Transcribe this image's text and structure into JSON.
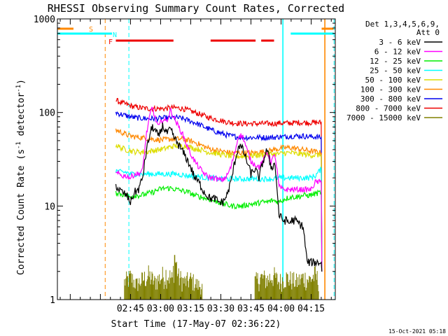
{
  "chart_data": {
    "type": "line",
    "title": "RHESSI Observing Summary Count Rates, Corrected",
    "xlabel": "Start Time (17-May-07 02:36:22)",
    "ylabel_main": "Corrected Count Rate (s",
    "ylabel_sup1": "-1",
    "ylabel_mid": " detector",
    "ylabel_sup2": "-1",
    "ylabel_end": ")",
    "y_scale": "log",
    "ylim": [
      1,
      1000
    ],
    "y_ticks": [
      {
        "value": 1,
        "label": "1"
      },
      {
        "value": 10,
        "label": "10"
      },
      {
        "value": 100,
        "label": "100"
      },
      {
        "value": 1000,
        "label": "1000"
      }
    ],
    "xlim_minutes": [
      -36.4,
      102.0
    ],
    "x_ticks": [
      {
        "minutes": 0,
        "label": "02:45"
      },
      {
        "minutes": 15,
        "label": "03:00"
      },
      {
        "minutes": 30,
        "label": "03:15"
      },
      {
        "minutes": 45,
        "label": "03:30"
      },
      {
        "minutes": 60,
        "label": "03:45"
      },
      {
        "minutes": 75,
        "label": "04:00"
      },
      {
        "minutes": 90,
        "label": "04:15"
      }
    ],
    "legend_header": [
      "Det 1,3,4,5,6,9,",
      "Att 0"
    ],
    "legend_placement": "top-right",
    "series": [
      {
        "name": "3 - 6 keV",
        "color": "#000000",
        "x": [
          -7.3,
          -6,
          -4,
          -2,
          0,
          2,
          4,
          6,
          8,
          10,
          11,
          12,
          14,
          16,
          18,
          20,
          22,
          24,
          26,
          28,
          30,
          32,
          34,
          36,
          38,
          40,
          42,
          44,
          46,
          48,
          50,
          52,
          54,
          56,
          58,
          60,
          62,
          64,
          66,
          68,
          70,
          72,
          74,
          76,
          78,
          79,
          80,
          82,
          84,
          86,
          88,
          90,
          92,
          94,
          95
        ],
        "y": [
          17,
          15,
          14,
          13,
          11,
          14,
          15,
          20,
          40,
          62,
          70,
          65,
          55,
          72,
          60,
          65,
          52,
          45,
          38,
          32,
          26,
          20,
          18,
          15,
          13,
          12,
          12,
          11,
          11,
          13,
          18,
          30,
          45,
          40,
          30,
          22,
          25,
          20,
          30,
          40,
          26,
          28,
          8,
          7,
          7,
          6.5,
          7,
          7,
          6.5,
          6,
          2.5,
          2.5,
          2.5,
          2.5,
          2.5
        ]
      },
      {
        "name": "6 - 12 keV",
        "color": "#ff00ff",
        "x": [
          -7.3,
          -6,
          -4,
          -2,
          0,
          2,
          4,
          6,
          8,
          10,
          11,
          12,
          14,
          16,
          18,
          20,
          22,
          24,
          26,
          28,
          30,
          32,
          34,
          36,
          38,
          40,
          42,
          44,
          46,
          48,
          50,
          52,
          54,
          56,
          58,
          60,
          62,
          64,
          66,
          68,
          70,
          72,
          74,
          76,
          78,
          80,
          82,
          84,
          86,
          88,
          90,
          92,
          95
        ],
        "y": [
          22,
          22,
          21,
          21,
          20,
          22,
          22,
          24,
          60,
          100,
          115,
          90,
          70,
          85,
          80,
          105,
          85,
          70,
          58,
          45,
          36,
          30,
          26,
          23,
          21,
          20,
          20,
          19,
          19,
          21,
          26,
          38,
          58,
          55,
          40,
          30,
          28,
          26,
          30,
          38,
          30,
          35,
          16,
          15,
          15,
          15,
          15,
          15,
          15,
          15,
          15,
          18,
          18
        ]
      },
      {
        "name": "12 - 25 keV",
        "color": "#00ee00",
        "x": [
          -7.3,
          -5,
          -2,
          0,
          2,
          5,
          8,
          11,
          14,
          17,
          20,
          23,
          26,
          29,
          32,
          35,
          38,
          41,
          44,
          47,
          50,
          53,
          56,
          59,
          62,
          65,
          68,
          71,
          74,
          77,
          80,
          83,
          86,
          89,
          92,
          95
        ],
        "y": [
          14,
          13.5,
          13,
          12.5,
          13,
          13,
          13.5,
          14,
          15,
          15.5,
          15.5,
          15,
          14.5,
          14,
          13,
          12.5,
          12,
          11.5,
          11,
          10.5,
          10,
          10,
          10,
          10.5,
          10.5,
          11,
          11,
          11.5,
          11,
          12,
          12.5,
          12.5,
          13,
          13,
          13.5,
          14
        ]
      },
      {
        "name": "25 - 50 keV",
        "color": "#00ffff",
        "x": [
          -7.3,
          -5,
          -2,
          0,
          2,
          5,
          8,
          11,
          14,
          17,
          20,
          23,
          26,
          29,
          32,
          35,
          38,
          41,
          44,
          47,
          50,
          53,
          56,
          59,
          62,
          65,
          68,
          71,
          74,
          77,
          80,
          83,
          86,
          89,
          92,
          95
        ],
        "y": [
          24,
          23,
          23,
          22,
          22,
          22,
          22,
          22,
          22,
          22,
          22,
          22,
          21.5,
          21,
          21,
          20.5,
          20,
          20,
          19.5,
          19.5,
          19.5,
          19.5,
          19.5,
          19.5,
          19.5,
          19.5,
          19.5,
          19.5,
          20,
          20,
          20,
          20,
          20,
          20,
          21,
          25
        ]
      },
      {
        "name": "50 - 100 keV",
        "color": "#dddd00",
        "x": [
          -7.3,
          -5,
          -2,
          0,
          2,
          5,
          8,
          11,
          14,
          17,
          20,
          23,
          26,
          29,
          32,
          35,
          38,
          41,
          44,
          47,
          50,
          53,
          56,
          59,
          62,
          65,
          68,
          71,
          74,
          77,
          80,
          83,
          86,
          89,
          92,
          95
        ],
        "y": [
          45,
          42,
          40,
          39,
          38,
          38,
          38,
          39,
          40,
          41,
          43,
          44,
          44,
          43,
          41,
          40,
          38,
          37,
          36,
          35,
          34,
          34,
          34,
          34,
          35,
          35,
          36,
          36,
          36,
          37,
          37,
          36,
          36,
          35,
          35,
          35
        ]
      },
      {
        "name": "100 - 300 keV",
        "color": "#ff8800",
        "x": [
          -7.3,
          -5,
          -2,
          0,
          2,
          5,
          8,
          11,
          14,
          17,
          20,
          23,
          26,
          29,
          32,
          35,
          38,
          41,
          44,
          47,
          50,
          53,
          56,
          59,
          62,
          65,
          68,
          71,
          74,
          77,
          80,
          83,
          86,
          89,
          92,
          95
        ],
        "y": [
          65,
          62,
          58,
          56,
          55,
          54,
          53,
          52,
          51,
          51,
          52,
          52,
          52,
          50,
          48,
          45,
          42,
          40,
          39,
          38,
          37,
          37,
          37,
          37,
          37,
          38,
          38,
          40,
          41,
          42,
          42,
          41,
          40,
          39,
          38,
          37
        ]
      },
      {
        "name": "300 - 800 keV",
        "color": "#0000ee",
        "x": [
          -7.3,
          -5,
          -2,
          0,
          2,
          5,
          8,
          11,
          14,
          17,
          20,
          23,
          26,
          29,
          32,
          35,
          38,
          41,
          44,
          47,
          50,
          53,
          56,
          59,
          62,
          65,
          68,
          71,
          74,
          77,
          80,
          83,
          86,
          89,
          92,
          95
        ],
        "y": [
          100,
          96,
          92,
          90,
          88,
          87,
          86,
          86,
          86,
          87,
          88,
          88,
          86,
          82,
          78,
          73,
          68,
          64,
          61,
          58,
          56,
          55,
          54,
          54,
          54,
          54,
          54,
          54,
          55,
          55,
          56,
          56,
          56,
          55,
          55,
          54
        ]
      },
      {
        "name": "800 - 7000 keV",
        "color": "#ee0000",
        "x": [
          -7.3,
          -5,
          -2,
          0,
          2,
          5,
          8,
          11,
          14,
          17,
          20,
          23,
          26,
          29,
          32,
          35,
          38,
          41,
          44,
          47,
          50,
          53,
          56,
          59,
          62,
          65,
          68,
          71,
          74,
          77,
          80,
          83,
          86,
          89,
          92,
          95
        ],
        "y": [
          135,
          128,
          122,
          118,
          115,
          112,
          110,
          110,
          110,
          110,
          112,
          112,
          110,
          105,
          100,
          95,
          90,
          86,
          83,
          80,
          78,
          77,
          76,
          76,
          76,
          76,
          76,
          76,
          77,
          77,
          77,
          78,
          78,
          78,
          78,
          78
        ]
      },
      {
        "name": "7000 - 15000 keV",
        "color": "#808000",
        "x": [
          -3,
          0,
          3,
          6,
          9,
          12,
          15,
          18,
          21,
          22,
          24,
          27,
          30,
          33,
          36,
          62,
          65,
          68,
          71,
          74,
          77,
          80,
          83,
          86,
          89,
          92,
          94
        ],
        "y": [
          1.6,
          1.8,
          1.5,
          1.7,
          1.9,
          1.6,
          1.8,
          2.0,
          1.7,
          3.0,
          1.8,
          1.6,
          1.7,
          1.5,
          1.4,
          1.6,
          1.8,
          1.7,
          1.9,
          1.6,
          1.8,
          1.7,
          1.6,
          1.8,
          1.7,
          1.9,
          1.6
        ]
      }
    ],
    "flag_bars": [
      {
        "label": "S",
        "color": "#ff8800",
        "row": 1,
        "segments": [
          [
            -36.4,
            -28.4
          ],
          [
            95.2,
            101.1
          ]
        ]
      },
      {
        "label": "N",
        "color": "#00ffff",
        "row": 2,
        "segments": [
          [
            -36.4,
            -9.2
          ],
          [
            79.8,
            101.2
          ]
        ]
      },
      {
        "label": "F",
        "color": "#ee0000",
        "row": 3,
        "segments": [
          [
            -7.3,
            21.4
          ],
          [
            39.9,
            62.3
          ],
          [
            65.1,
            71.5
          ]
        ]
      }
    ],
    "vertical_lines": [
      {
        "minutes": -12.6,
        "color": "#ff8800",
        "dashed": true
      },
      {
        "minutes": -0.8,
        "color": "#00ffff",
        "dashed": true
      },
      {
        "minutes": 75.9,
        "color": "#00ffff",
        "dashed": false
      },
      {
        "minutes": 96.8,
        "color": "#ff8800",
        "dashed": false
      },
      {
        "minutes": 101.4,
        "color": "#00ffff",
        "dashed": true
      }
    ],
    "timestamp": "15-Oct-2021 05:18",
    "grid": false
  }
}
